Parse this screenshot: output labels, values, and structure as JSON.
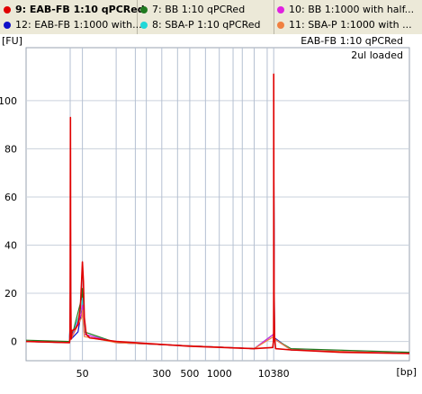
{
  "legend": {
    "columns": [
      [
        {
          "label": "9: EAB-FB 1:10 qPCRed",
          "color": "#e00000",
          "selected": true
        },
        {
          "label": "12: EAB-FB 1:1000 with...",
          "color": "#1010c8",
          "selected": false
        }
      ],
      [
        {
          "label": "7: BB 1:10 qPCRed",
          "color": "#1f7a1f",
          "selected": false
        },
        {
          "label": "8: SBA-P 1:10 qPCRed",
          "color": "#20d8d8",
          "selected": false
        }
      ],
      [
        {
          "label": "10: BB 1:1000 with half...",
          "color": "#e020e0",
          "selected": false
        },
        {
          "label": "11: SBA-P 1:1000 with ...",
          "color": "#f08040",
          "selected": false
        }
      ]
    ]
  },
  "chart_data": {
    "type": "line",
    "y_unit_label": "[FU]",
    "x_unit_label": "[bp]",
    "annotations": [
      "EAB-FB 1:10 qPCRed",
      "2ul loaded"
    ],
    "ylim": [
      -8,
      122
    ],
    "y_ticks": [
      0,
      20,
      40,
      60,
      80,
      100
    ],
    "x_tick_labels": [
      "50",
      "300",
      "500",
      "1000",
      "10380"
    ],
    "x_tick_positions": [
      50,
      300,
      500,
      1000,
      10380
    ],
    "x_tick_labels_partial": [
      "50",
      "300",
      "500",
      "1000",
      "10380"
    ],
    "ladder_lines_bp": [
      35,
      50,
      100,
      150,
      200,
      300,
      400,
      500,
      700,
      1000,
      1500,
      2000,
      3000,
      7000,
      10380
    ],
    "grid": true,
    "series": [
      {
        "name": "9: EAB-FB 1:10 qPCRed",
        "color": "#e00000",
        "points": [
          [
            1,
            0
          ],
          [
            33,
            -0.5
          ],
          [
            34.5,
            1
          ],
          [
            35,
            20
          ],
          [
            35.3,
            93
          ],
          [
            35.6,
            20
          ],
          [
            36,
            1
          ],
          [
            37,
            4.5
          ],
          [
            40,
            5
          ],
          [
            44,
            7
          ],
          [
            47,
            14
          ],
          [
            49,
            26
          ],
          [
            50,
            33
          ],
          [
            51,
            25
          ],
          [
            52,
            10
          ],
          [
            54,
            3
          ],
          [
            58,
            1.5
          ],
          [
            100,
            0
          ],
          [
            500,
            -2
          ],
          [
            3000,
            -3
          ],
          [
            9800,
            -2.5
          ],
          [
            10200,
            0
          ],
          [
            10300,
            4
          ],
          [
            10360,
            20
          ],
          [
            10380,
            111
          ],
          [
            10400,
            20
          ],
          [
            10450,
            2
          ],
          [
            10550,
            -3
          ],
          [
            12000,
            -3.5
          ],
          [
            18000,
            -4.5
          ],
          [
            30000,
            -5
          ]
        ]
      },
      {
        "name": "12: EAB-FB 1:1000 with...",
        "color": "#1010c8",
        "points": [
          [
            1,
            0
          ],
          [
            33,
            -0.5
          ],
          [
            35,
            10
          ],
          [
            35.3,
            72
          ],
          [
            35.6,
            10
          ],
          [
            36,
            1
          ],
          [
            44,
            4
          ],
          [
            49,
            13
          ],
          [
            50,
            16
          ],
          [
            52,
            3
          ],
          [
            100,
            -0.5
          ],
          [
            3000,
            -3
          ],
          [
            10300,
            3
          ],
          [
            10380,
            87
          ],
          [
            10450,
            1.5
          ],
          [
            12000,
            -3.5
          ],
          [
            30000,
            -5
          ]
        ]
      },
      {
        "name": "7: BB 1:10 qPCRed",
        "color": "#1f7a1f",
        "points": [
          [
            1,
            0.5
          ],
          [
            33,
            0
          ],
          [
            35,
            8
          ],
          [
            35.3,
            50
          ],
          [
            35.6,
            8
          ],
          [
            36,
            1
          ],
          [
            49,
            18
          ],
          [
            50,
            22
          ],
          [
            52,
            4
          ],
          [
            100,
            -0.5
          ],
          [
            3000,
            -3
          ],
          [
            10300,
            3
          ],
          [
            10380,
            78
          ],
          [
            10450,
            1
          ],
          [
            12000,
            -3
          ],
          [
            30000,
            -4.5
          ]
        ]
      },
      {
        "name": "8: SBA-P 1:10 qPCRed",
        "color": "#20d8d8",
        "points": [
          [
            1,
            0
          ],
          [
            33,
            -0.5
          ],
          [
            35,
            6
          ],
          [
            35.3,
            35
          ],
          [
            35.6,
            6
          ],
          [
            36,
            1
          ],
          [
            49,
            14
          ],
          [
            50,
            18
          ],
          [
            52,
            3
          ],
          [
            100,
            -0.5
          ],
          [
            3000,
            -3
          ],
          [
            10300,
            3
          ],
          [
            10380,
            60
          ],
          [
            10450,
            1
          ],
          [
            12000,
            -3.5
          ],
          [
            30000,
            -5
          ]
        ]
      },
      {
        "name": "10: BB 1:1000 with half...",
        "color": "#e020e0",
        "points": [
          [
            1,
            0
          ],
          [
            33,
            -0.5
          ],
          [
            35,
            7
          ],
          [
            35.3,
            45
          ],
          [
            35.6,
            7
          ],
          [
            36,
            1
          ],
          [
            49,
            12
          ],
          [
            50,
            15
          ],
          [
            52,
            3
          ],
          [
            100,
            -0.5
          ],
          [
            3000,
            -3
          ],
          [
            10300,
            3
          ],
          [
            10380,
            70
          ],
          [
            10450,
            1
          ],
          [
            12000,
            -3.5
          ],
          [
            30000,
            -5
          ]
        ]
      },
      {
        "name": "11: SBA-P 1:1000 with ...",
        "color": "#f08040",
        "points": [
          [
            1,
            0
          ],
          [
            33,
            -0.5
          ],
          [
            35,
            5
          ],
          [
            35.3,
            30
          ],
          [
            35.6,
            5
          ],
          [
            36,
            1
          ],
          [
            49,
            10
          ],
          [
            50,
            13
          ],
          [
            52,
            2
          ],
          [
            100,
            -0.5
          ],
          [
            3000,
            -3
          ],
          [
            10300,
            2
          ],
          [
            10380,
            55
          ],
          [
            10450,
            1
          ],
          [
            12000,
            -3.5
          ],
          [
            30000,
            -5
          ]
        ]
      }
    ]
  }
}
